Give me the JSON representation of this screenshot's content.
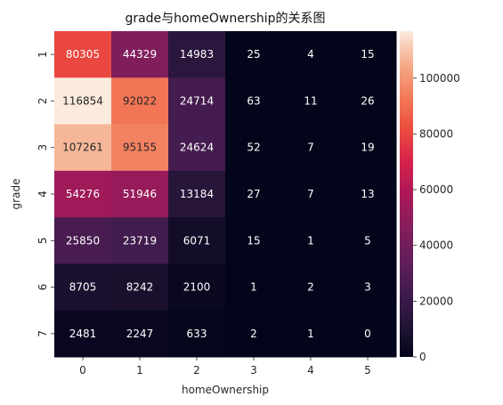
{
  "chart_data": {
    "type": "heatmap",
    "title": "grade与homeOwnership的关系图",
    "xlabel": "homeOwnership",
    "ylabel": "grade",
    "x_categories": [
      "0",
      "1",
      "2",
      "3",
      "4",
      "5"
    ],
    "y_categories": [
      "1",
      "2",
      "3",
      "4",
      "5",
      "6",
      "7"
    ],
    "values": [
      [
        80305,
        44329,
        14983,
        25,
        4,
        15
      ],
      [
        116854,
        92022,
        24714,
        63,
        11,
        26
      ],
      [
        107261,
        95155,
        24624,
        52,
        7,
        19
      ],
      [
        54276,
        51946,
        13184,
        27,
        7,
        13
      ],
      [
        25850,
        23719,
        6071,
        15,
        1,
        5
      ],
      [
        8705,
        8242,
        2100,
        1,
        2,
        3
      ],
      [
        2481,
        2247,
        633,
        2,
        1,
        0
      ]
    ],
    "colorbar": {
      "min": 0,
      "max": 116854,
      "ticks": [
        0,
        20000,
        40000,
        60000,
        80000,
        100000
      ],
      "tick_labels": [
        "0",
        "20000",
        "40000",
        "60000",
        "80000",
        "100000"
      ],
      "colormap": "rocket"
    }
  }
}
